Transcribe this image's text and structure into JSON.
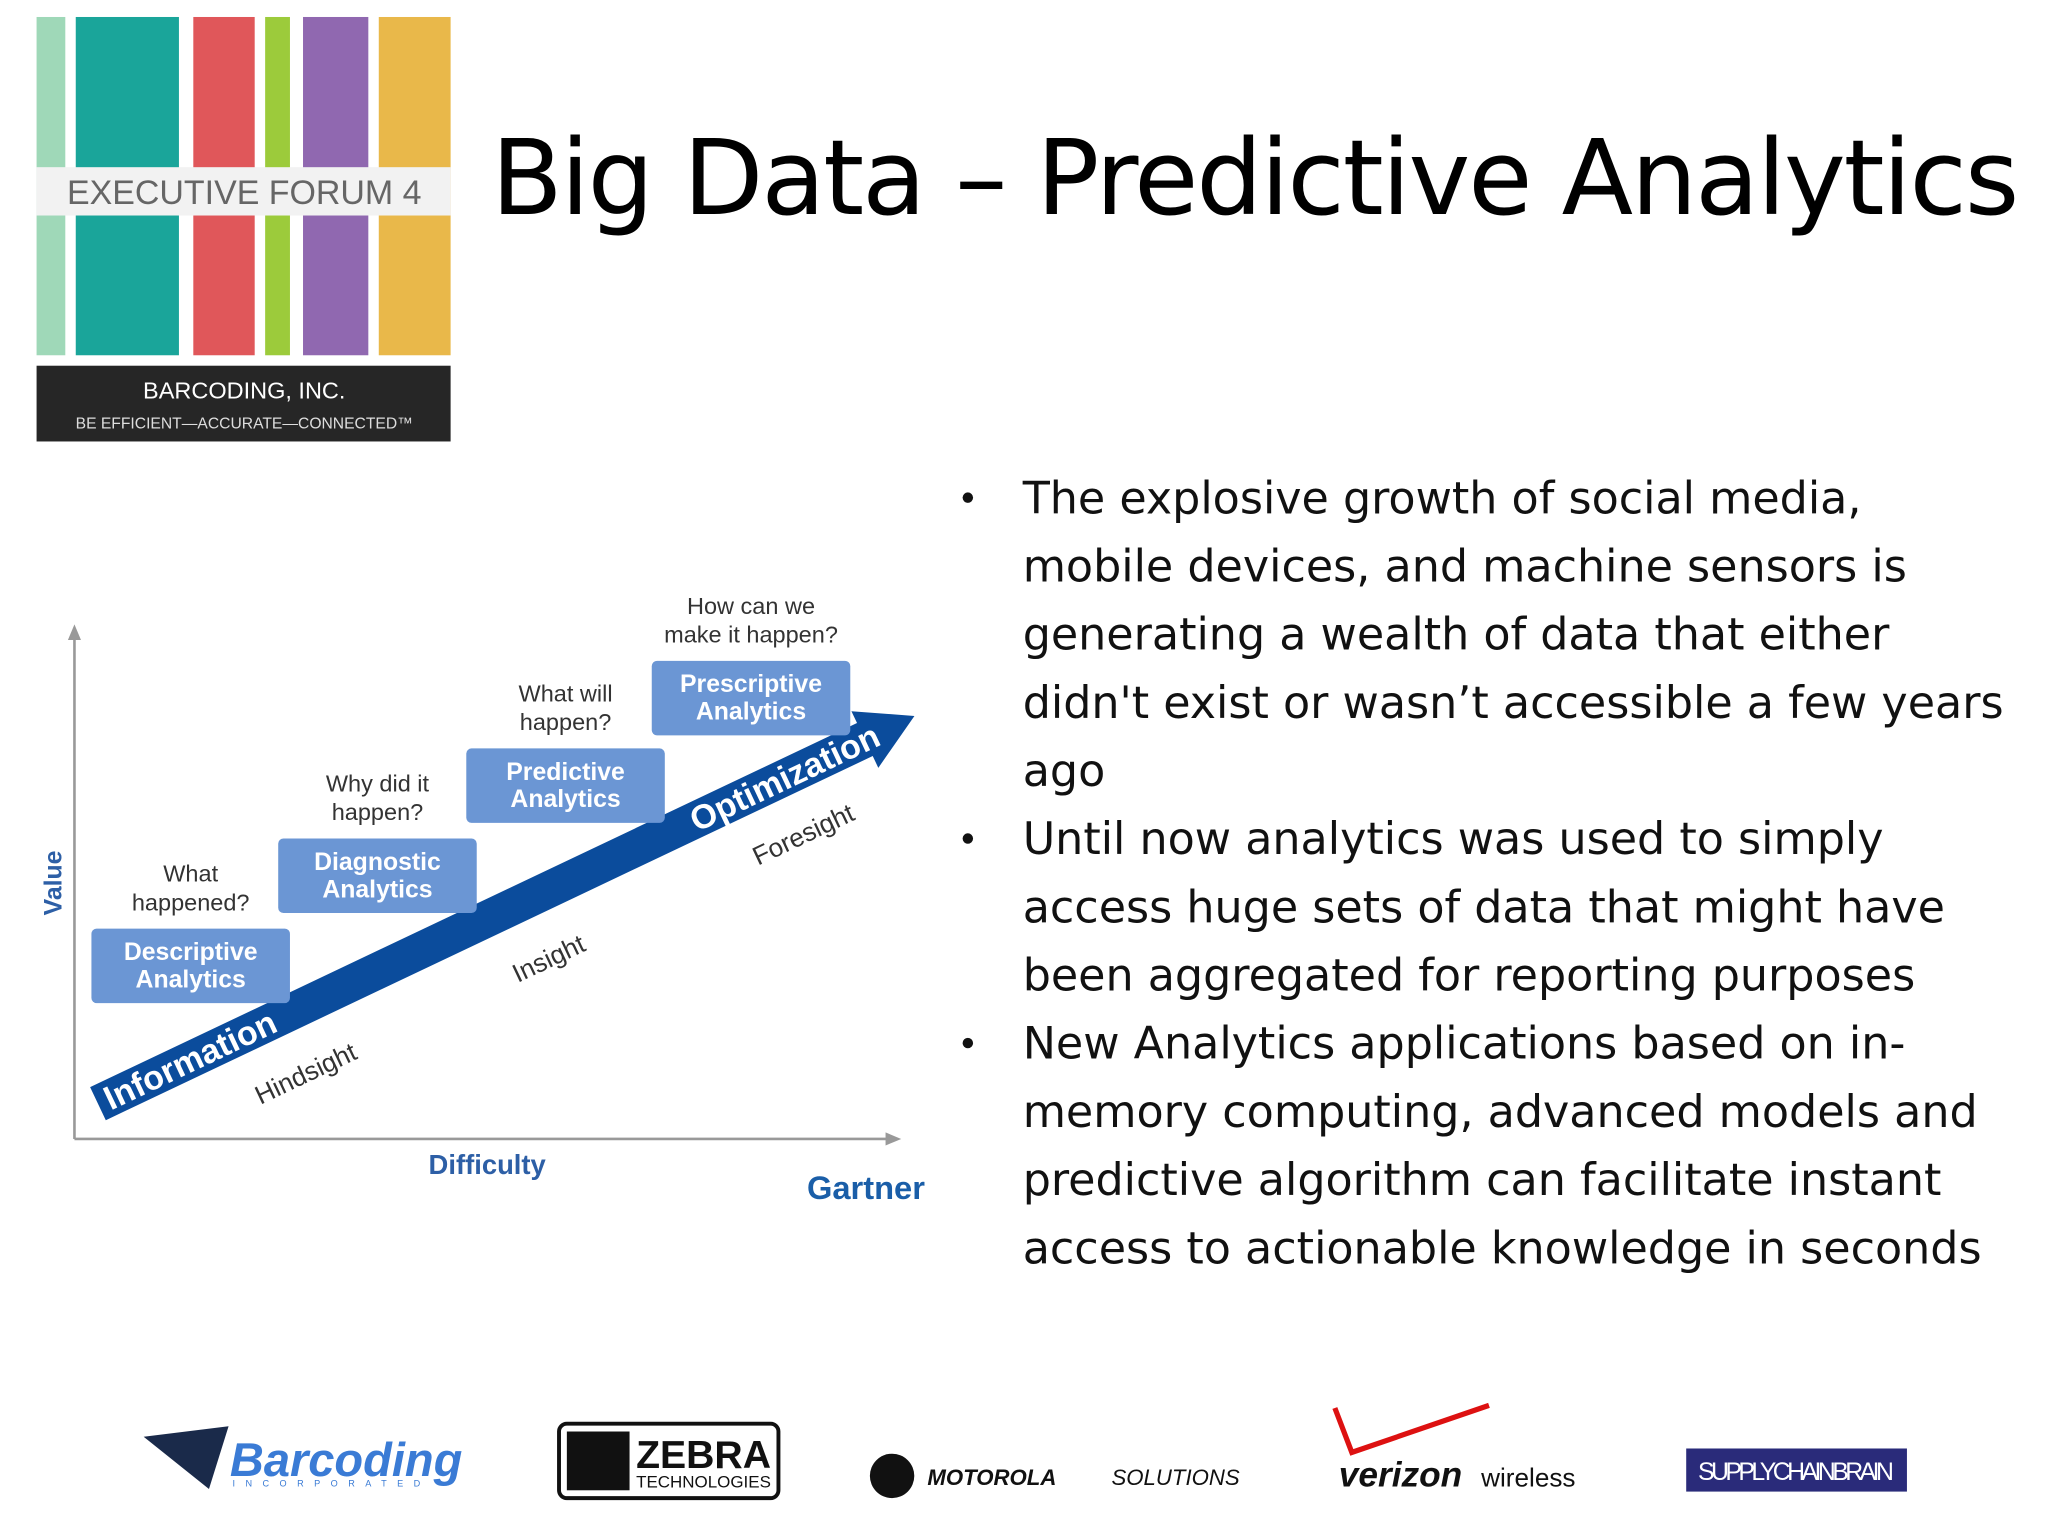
{
  "header": {
    "logo": {
      "band": "EXECUTIVE FORUM 4",
      "company": "BARCODING, INC.",
      "tagline": "BE EFFICIENT—ACCURATE—CONNECTED™"
    },
    "title": "Big Data – Predictive Analytics"
  },
  "diagram": {
    "y_axis": "Value",
    "x_axis": "Difficulty",
    "source": "Gartner",
    "stages": [
      {
        "question": [
          "What",
          "happened?"
        ],
        "label": [
          "Descriptive",
          "Analytics"
        ]
      },
      {
        "question": [
          "Why did it",
          "happen?"
        ],
        "label": [
          "Diagnostic",
          "Analytics"
        ]
      },
      {
        "question": [
          "What will",
          "happen?"
        ],
        "label": [
          "Predictive",
          "Analytics"
        ]
      },
      {
        "question": [
          "How can we",
          "make it happen?"
        ],
        "label": [
          "Prescriptive",
          "Analytics"
        ]
      }
    ],
    "arrow": {
      "start": "Information",
      "end": "Optimization"
    },
    "sights": [
      "Hindsight",
      "Insight",
      "Foresight"
    ]
  },
  "bullets": [
    {
      "lines": [
        "The explosive growth of social media,",
        "mobile devices, and machine sensors is",
        "generating a wealth of data that either",
        "didn't exist or wasn’t accessible a few years",
        "ago"
      ]
    },
    {
      "lines": [
        "Until now analytics was used to simply",
        "access huge sets of data that might have",
        "been aggregated for reporting purposes"
      ]
    },
    {
      "lines": [
        "New Analytics applications based on in-",
        "memory computing, advanced models and",
        "predictive algorithm can facilitate instant",
        "access to actionable knowledge in seconds"
      ]
    }
  ],
  "sponsors": {
    "barcoding": [
      "Barcoding",
      "INCORPORATED"
    ],
    "zebra": [
      "ZEBRA",
      "TECHNOLOGIES"
    ],
    "motorola": [
      "MOTOROLA",
      "SOLUTIONS"
    ],
    "verizon": [
      "verizon",
      "wireless"
    ],
    "supplychain": "SUPPLYCHAINBRAIN"
  }
}
